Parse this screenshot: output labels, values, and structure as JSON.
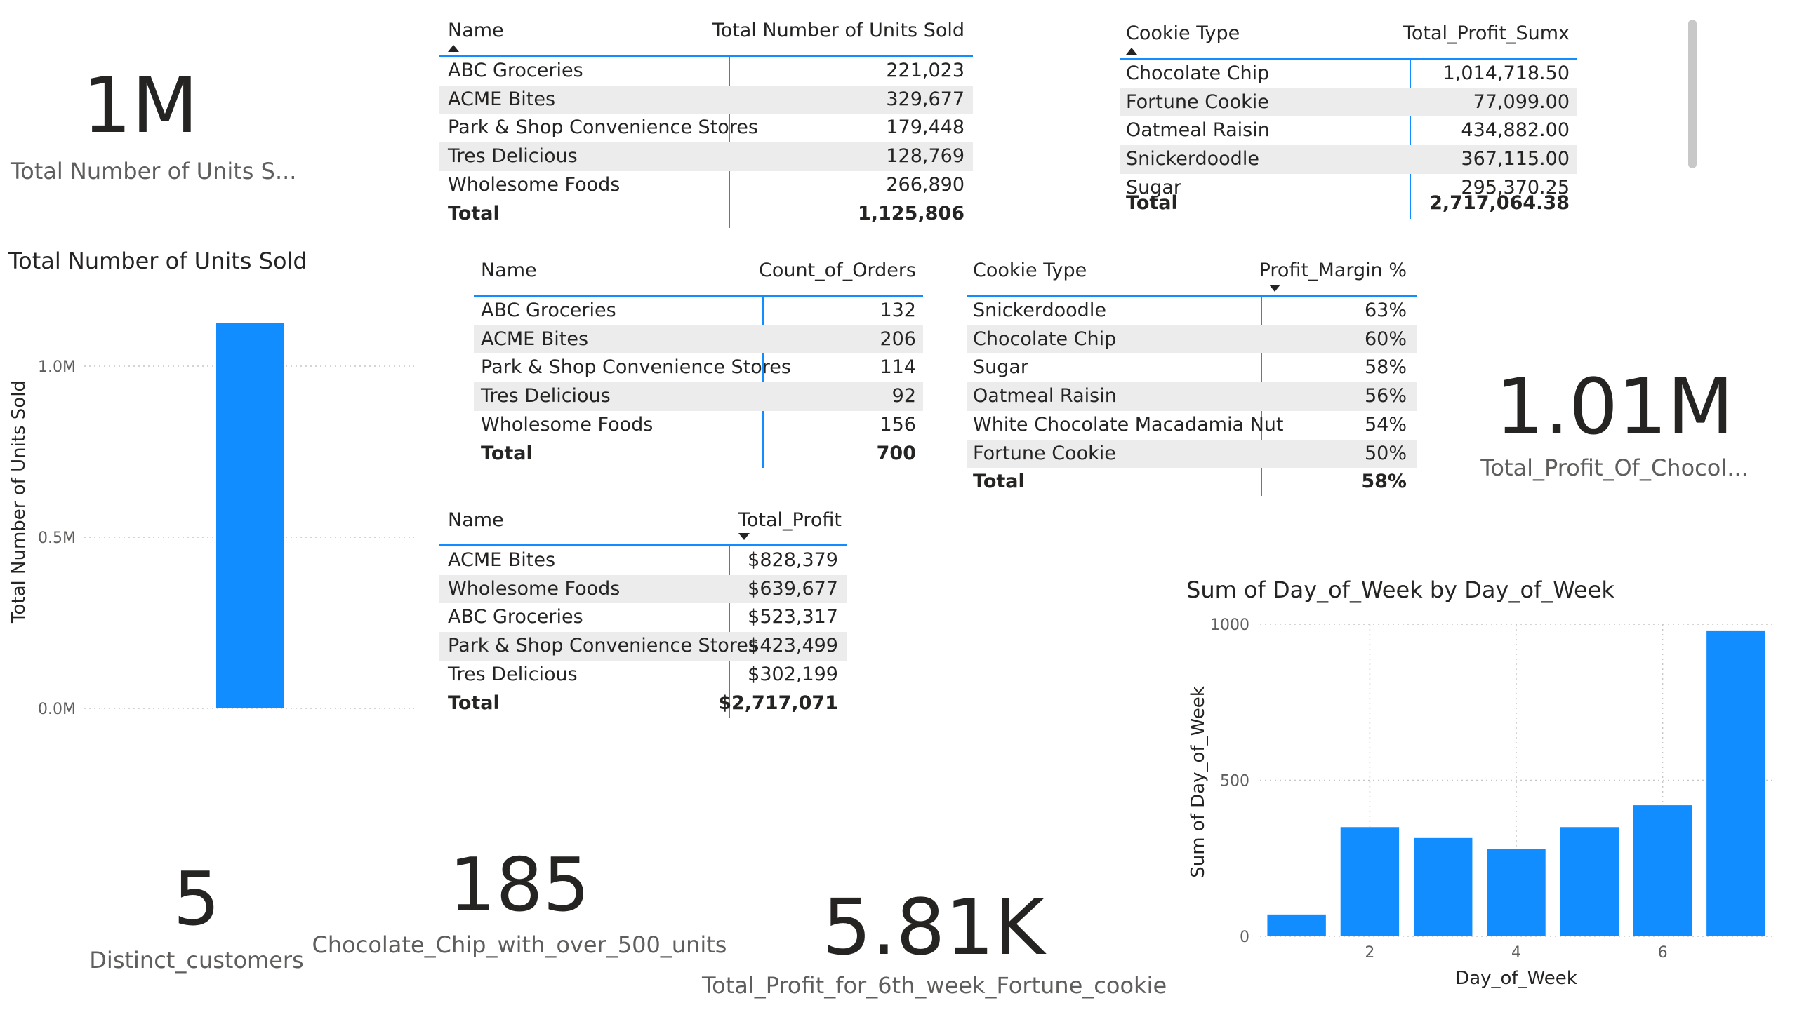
{
  "card_units": {
    "value": "1M",
    "label": "Total Number of Units S..."
  },
  "units_chart": {
    "title": "Total Number of Units Sold",
    "ylabel": "Total Number of Units Sold",
    "ticks": [
      "0.0M",
      "0.5M",
      "1.0M"
    ],
    "color": "#118dff"
  },
  "table_units": {
    "headers": [
      "Name",
      "Total Number of Units Sold"
    ],
    "rows": [
      [
        "ABC Groceries",
        "221,023"
      ],
      [
        "ACME Bites",
        "329,677"
      ],
      [
        "Park & Shop Convenience Stores",
        "179,448"
      ],
      [
        "Tres Delicious",
        "128,769"
      ],
      [
        "Wholesome Foods",
        "266,890"
      ]
    ],
    "total": [
      "Total",
      "1,125,806"
    ]
  },
  "table_cookie_profit": {
    "headers": [
      "Cookie Type",
      "Total_Profit_Sumx"
    ],
    "rows": [
      [
        "Chocolate Chip",
        "1,014,718.50"
      ],
      [
        "Fortune Cookie",
        "77,099.00"
      ],
      [
        "Oatmeal Raisin",
        "434,882.00"
      ],
      [
        "Snickerdoodle",
        "367,115.00"
      ],
      [
        "Sugar",
        "295,370.25"
      ]
    ],
    "total": [
      "Total",
      "2,717,064.38"
    ]
  },
  "table_orders": {
    "headers": [
      "Name",
      "Count_of_Orders"
    ],
    "rows": [
      [
        "ABC Groceries",
        "132"
      ],
      [
        "ACME Bites",
        "206"
      ],
      [
        "Park & Shop Convenience Stores",
        "114"
      ],
      [
        "Tres Delicious",
        "92"
      ],
      [
        "Wholesome Foods",
        "156"
      ]
    ],
    "total": [
      "Total",
      "700"
    ]
  },
  "table_margin": {
    "headers": [
      "Cookie Type",
      "Profit_Margin %"
    ],
    "rows": [
      [
        "Snickerdoodle",
        "63%"
      ],
      [
        "Chocolate Chip",
        "60%"
      ],
      [
        "Sugar",
        "58%"
      ],
      [
        "Oatmeal Raisin",
        "56%"
      ],
      [
        "White Chocolate Macadamia Nut",
        "54%"
      ],
      [
        "Fortune Cookie",
        "50%"
      ]
    ],
    "total": [
      "Total",
      "58%"
    ]
  },
  "table_profit": {
    "headers": [
      "Name",
      "Total_Profit"
    ],
    "rows": [
      [
        "ACME Bites",
        "$828,379"
      ],
      [
        "Wholesome Foods",
        "$639,677"
      ],
      [
        "ABC Groceries",
        "$523,317"
      ],
      [
        "Park & Shop Convenience Stores",
        "$423,499"
      ],
      [
        "Tres Delicious",
        "$302,199"
      ]
    ],
    "total": [
      "Total",
      "$2,717,071"
    ]
  },
  "card_choc_profit": {
    "value": "1.01M",
    "label": "Total_Profit_Of_Chocol..."
  },
  "card_customers": {
    "value": "5",
    "label": "Distinct_customers"
  },
  "card_choc500": {
    "value": "185",
    "label": "Chocolate_Chip_with_over_500_units"
  },
  "card_fortune": {
    "value": "5.81K",
    "label": "Total_Profit_for_6th_week_Fortune_cookie"
  },
  "chart_data": [
    {
      "type": "bar",
      "title": "Total Number of Units Sold",
      "categories": [
        ""
      ],
      "values": [
        1125806
      ],
      "xlabel": "",
      "ylabel": "Total Number of Units Sold",
      "ylim": [
        0,
        1250000
      ],
      "yticks": [
        0,
        500000,
        1000000
      ],
      "ytick_labels": [
        "0.0M",
        "0.5M",
        "1.0M"
      ],
      "grid": true
    },
    {
      "type": "bar",
      "title": "Sum of Day_of_Week by Day_of_Week",
      "x": [
        1,
        2,
        3,
        4,
        5,
        6,
        7
      ],
      "values": [
        70,
        350,
        315,
        280,
        350,
        420,
        980
      ],
      "xticks": [
        "2",
        "4",
        "6"
      ],
      "xtick_values": [
        2,
        4,
        6
      ],
      "yticks": [
        "0",
        "500",
        "1000"
      ],
      "ytick_values": [
        0,
        500,
        1000
      ],
      "xlabel": "Day_of_Week",
      "ylabel": "Sum of Day_of_Week",
      "ylim": [
        0,
        1000
      ],
      "grid": true,
      "color": "#118dff"
    }
  ]
}
